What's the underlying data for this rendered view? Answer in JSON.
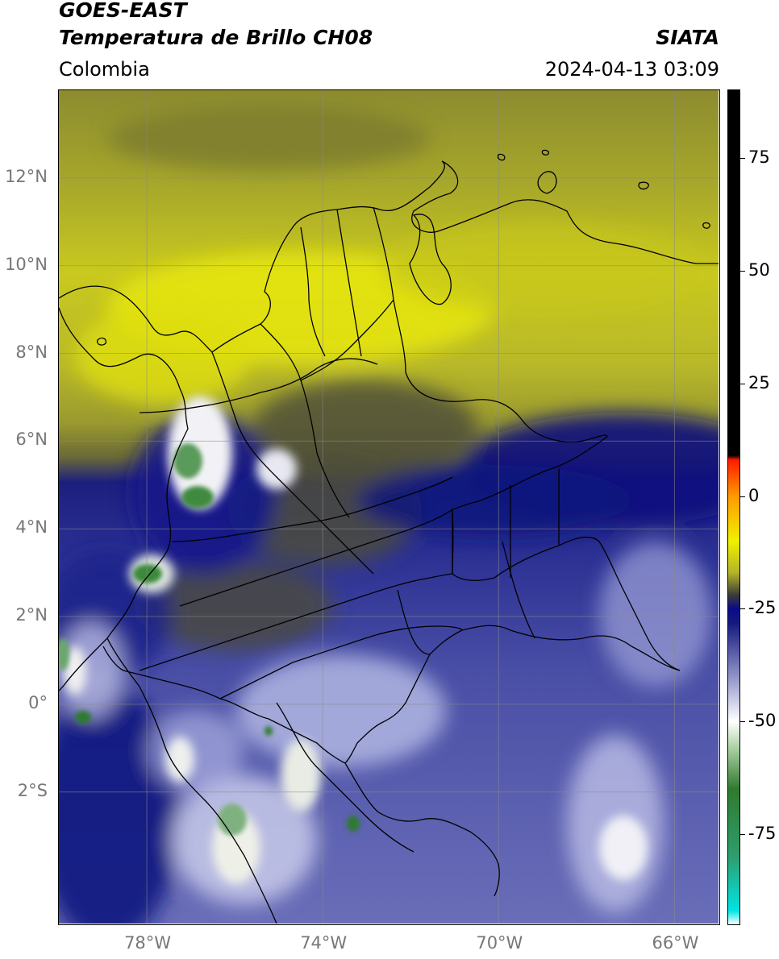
{
  "header": {
    "title_line1": "GOES-EAST",
    "title_line2": "Temperatura de Brillo CH08",
    "region": "Colombia",
    "brand": "SIATA",
    "timestamp": "2024-04-13 03:09"
  },
  "map": {
    "lat_labels": [
      "12°N",
      "10°N",
      "8°N",
      "6°N",
      "4°N",
      "2°N",
      "0°",
      "2°S"
    ],
    "lon_labels": [
      "78°W",
      "74°W",
      "70°W",
      "66°W"
    ],
    "lat_range": [
      -5,
      14
    ],
    "lon_range": [
      -80,
      -65
    ]
  },
  "colorbar": {
    "ticks": [
      "75",
      "50",
      "25",
      "0",
      "-25",
      "-50",
      "-75"
    ],
    "range": [
      -95,
      90
    ],
    "stops": [
      {
        "value": -95,
        "color": "#ffffff"
      },
      {
        "value": -92,
        "color": "#00e5e5"
      },
      {
        "value": -80,
        "color": "#2e9e6e"
      },
      {
        "value": -65,
        "color": "#2f7a2f"
      },
      {
        "value": -55,
        "color": "#b8d8b0"
      },
      {
        "value": -50,
        "color": "#ffffff"
      },
      {
        "value": -40,
        "color": "#8f93c9"
      },
      {
        "value": -28,
        "color": "#14187e"
      },
      {
        "value": -25,
        "color": "#0a0a8a"
      },
      {
        "value": -22,
        "color": "#3a3a3a"
      },
      {
        "value": -17,
        "color": "#b4b428"
      },
      {
        "value": -10,
        "color": "#f0f000"
      },
      {
        "value": 0,
        "color": "#ff9a00"
      },
      {
        "value": 8,
        "color": "#ff1a00"
      },
      {
        "value": 9,
        "color": "#000000"
      },
      {
        "value": 90,
        "color": "#000000"
      }
    ]
  }
}
